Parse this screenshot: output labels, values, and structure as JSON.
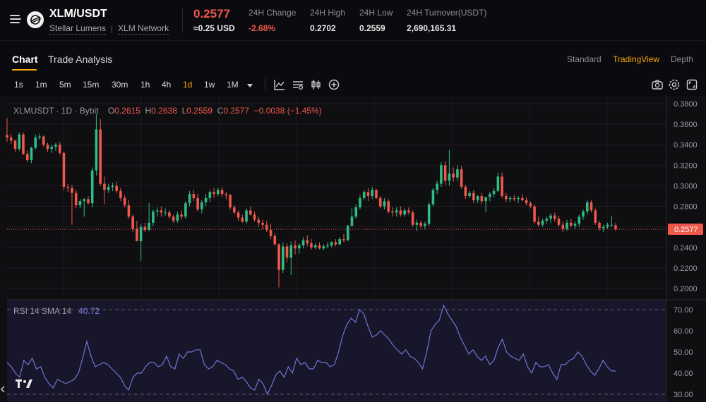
{
  "header": {
    "pair": "XLM/USDT",
    "asset_name": "Stellar Lumens",
    "network": "XLM Network",
    "last_price": "0.2577",
    "usd_price": "≈0.25 USD",
    "stats": [
      {
        "label": "24H Change",
        "value": "-2.68%",
        "tone": "red"
      },
      {
        "label": "24H High",
        "value": "0.2702",
        "tone": "neutral"
      },
      {
        "label": "24H Low",
        "value": "0.2559",
        "tone": "neutral"
      },
      {
        "label": "24H Turnover(USDT)",
        "value": "2,690,165.31",
        "tone": "neutral"
      }
    ]
  },
  "tabs": {
    "chart": "Chart",
    "trade_analysis": "Trade Analysis",
    "views": [
      "Standard",
      "TradingView",
      "Depth"
    ],
    "active_view": "TradingView"
  },
  "toolbar": {
    "timeframes": [
      "1s",
      "1m",
      "5m",
      "15m",
      "30m",
      "1h",
      "4h",
      "1d",
      "1w",
      "1M"
    ],
    "active_timeframe": "1d",
    "tools": [
      "indicator-icon",
      "settings-icon",
      "candle-type-icon",
      "add-icon"
    ],
    "right_tools": [
      "camera-icon",
      "gear-icon",
      "fullscreen-icon"
    ]
  },
  "legend": {
    "symbol": "XLMUSDT · 1D · Bybit",
    "o_label": "O",
    "o": "0.2615",
    "h_label": "H",
    "h": "0.2638",
    "l_label": "L",
    "l": "0.2559",
    "c_label": "C",
    "c": "0.2577",
    "change": "−0.0038 (−1.45%)"
  },
  "rsi_legend": {
    "label": "RSI 14 SMA 14",
    "value": "40.72"
  },
  "colors": {
    "up": "#2ebd85",
    "down": "#f0584b",
    "accent": "#f7a600",
    "rsi": "#7b6fd6"
  },
  "chart_data": [
    {
      "type": "candlestick",
      "title": "XLMUSDT · 1D · Bybit",
      "yticks": [
        "0.3800",
        "0.3600",
        "0.3400",
        "0.3200",
        "0.3000",
        "0.2800",
        "0.2600",
        "0.2400",
        "0.2200",
        "0.2000"
      ],
      "ylim": [
        0.1965,
        0.385
      ],
      "last_price_label": "0.2577",
      "grid": true,
      "candles": [
        [
          0.3495,
          0.366,
          0.343,
          0.347
        ],
        [
          0.347,
          0.35,
          0.341,
          0.344
        ],
        [
          0.344,
          0.345,
          0.333,
          0.336
        ],
        [
          0.336,
          0.352,
          0.334,
          0.35
        ],
        [
          0.35,
          0.352,
          0.33,
          0.331
        ],
        [
          0.331,
          0.334,
          0.323,
          0.325
        ],
        [
          0.325,
          0.338,
          0.322,
          0.337
        ],
        [
          0.337,
          0.35,
          0.335,
          0.347
        ],
        [
          0.347,
          0.351,
          0.345,
          0.348
        ],
        [
          0.348,
          0.349,
          0.338,
          0.34
        ],
        [
          0.34,
          0.342,
          0.333,
          0.336
        ],
        [
          0.336,
          0.34,
          0.332,
          0.338
        ],
        [
          0.338,
          0.342,
          0.334,
          0.34
        ],
        [
          0.34,
          0.343,
          0.33,
          0.332
        ],
        [
          0.332,
          0.333,
          0.296,
          0.299
        ],
        [
          0.299,
          0.302,
          0.294,
          0.298
        ],
        [
          0.298,
          0.301,
          0.262,
          0.293
        ],
        [
          0.293,
          0.296,
          0.278,
          0.281
        ],
        [
          0.281,
          0.287,
          0.278,
          0.285
        ],
        [
          0.285,
          0.288,
          0.27,
          0.287
        ],
        [
          0.287,
          0.29,
          0.282,
          0.283
        ],
        [
          0.283,
          0.318,
          0.279,
          0.315
        ],
        [
          0.315,
          0.37,
          0.31,
          0.355
        ],
        [
          0.355,
          0.365,
          0.3,
          0.302
        ],
        [
          0.302,
          0.309,
          0.282,
          0.296
        ],
        [
          0.296,
          0.302,
          0.293,
          0.299
        ],
        [
          0.299,
          0.303,
          0.295,
          0.3
        ],
        [
          0.3,
          0.304,
          0.293,
          0.295
        ],
        [
          0.295,
          0.298,
          0.285,
          0.288
        ],
        [
          0.288,
          0.291,
          0.279,
          0.281
        ],
        [
          0.281,
          0.286,
          0.268,
          0.27
        ],
        [
          0.27,
          0.272,
          0.255,
          0.258
        ],
        [
          0.258,
          0.266,
          0.246,
          0.246
        ],
        [
          0.246,
          0.263,
          0.227,
          0.26
        ],
        [
          0.26,
          0.264,
          0.255,
          0.257
        ],
        [
          0.257,
          0.283,
          0.256,
          0.264
        ],
        [
          0.264,
          0.277,
          0.261,
          0.275
        ],
        [
          0.275,
          0.279,
          0.27,
          0.276
        ],
        [
          0.276,
          0.28,
          0.27,
          0.274
        ],
        [
          0.274,
          0.278,
          0.271,
          0.274
        ],
        [
          0.274,
          0.276,
          0.268,
          0.27
        ],
        [
          0.27,
          0.272,
          0.264,
          0.266
        ],
        [
          0.266,
          0.275,
          0.264,
          0.272
        ],
        [
          0.272,
          0.276,
          0.267,
          0.27
        ],
        [
          0.27,
          0.285,
          0.268,
          0.283
        ],
        [
          0.283,
          0.295,
          0.28,
          0.292
        ],
        [
          0.292,
          0.296,
          0.285,
          0.288
        ],
        [
          0.288,
          0.292,
          0.275,
          0.277
        ],
        [
          0.277,
          0.286,
          0.273,
          0.284
        ],
        [
          0.284,
          0.292,
          0.28,
          0.288
        ],
        [
          0.288,
          0.296,
          0.284,
          0.294
        ],
        [
          0.294,
          0.298,
          0.288,
          0.292
        ],
        [
          0.292,
          0.298,
          0.29,
          0.296
        ],
        [
          0.296,
          0.299,
          0.289,
          0.292
        ],
        [
          0.292,
          0.294,
          0.287,
          0.291
        ],
        [
          0.291,
          0.292,
          0.277,
          0.279
        ],
        [
          0.279,
          0.281,
          0.272,
          0.274
        ],
        [
          0.274,
          0.276,
          0.266,
          0.269
        ],
        [
          0.269,
          0.272,
          0.264,
          0.265
        ],
        [
          0.265,
          0.278,
          0.263,
          0.276
        ],
        [
          0.276,
          0.28,
          0.271,
          0.272
        ],
        [
          0.272,
          0.275,
          0.265,
          0.267
        ],
        [
          0.267,
          0.27,
          0.26,
          0.264
        ],
        [
          0.264,
          0.267,
          0.258,
          0.262
        ],
        [
          0.262,
          0.266,
          0.255,
          0.257
        ],
        [
          0.257,
          0.263,
          0.248,
          0.251
        ],
        [
          0.251,
          0.254,
          0.242,
          0.243
        ],
        [
          0.243,
          0.244,
          0.201,
          0.218
        ],
        [
          0.218,
          0.245,
          0.215,
          0.241
        ],
        [
          0.241,
          0.244,
          0.225,
          0.23
        ],
        [
          0.23,
          0.246,
          0.213,
          0.242
        ],
        [
          0.242,
          0.247,
          0.233,
          0.239
        ],
        [
          0.239,
          0.244,
          0.234,
          0.242
        ],
        [
          0.242,
          0.25,
          0.239,
          0.247
        ],
        [
          0.247,
          0.252,
          0.241,
          0.244
        ],
        [
          0.244,
          0.248,
          0.238,
          0.24
        ],
        [
          0.24,
          0.244,
          0.238,
          0.242
        ],
        [
          0.242,
          0.245,
          0.238,
          0.239
        ],
        [
          0.239,
          0.243,
          0.237,
          0.241
        ],
        [
          0.241,
          0.245,
          0.239,
          0.242
        ],
        [
          0.242,
          0.246,
          0.24,
          0.245
        ],
        [
          0.245,
          0.248,
          0.241,
          0.243
        ],
        [
          0.243,
          0.25,
          0.242,
          0.248
        ],
        [
          0.248,
          0.253,
          0.245,
          0.247
        ],
        [
          0.247,
          0.262,
          0.246,
          0.261
        ],
        [
          0.261,
          0.278,
          0.26,
          0.27
        ],
        [
          0.27,
          0.282,
          0.268,
          0.279
        ],
        [
          0.279,
          0.291,
          0.277,
          0.288
        ],
        [
          0.288,
          0.296,
          0.286,
          0.294
        ],
        [
          0.294,
          0.298,
          0.285,
          0.29
        ],
        [
          0.29,
          0.299,
          0.287,
          0.296
        ],
        [
          0.296,
          0.297,
          0.287,
          0.288
        ],
        [
          0.288,
          0.29,
          0.278,
          0.28
        ],
        [
          0.28,
          0.288,
          0.277,
          0.285
        ],
        [
          0.285,
          0.287,
          0.273,
          0.275
        ],
        [
          0.275,
          0.279,
          0.27,
          0.274
        ],
        [
          0.274,
          0.279,
          0.27,
          0.276
        ],
        [
          0.276,
          0.28,
          0.27,
          0.272
        ],
        [
          0.272,
          0.278,
          0.27,
          0.276
        ],
        [
          0.276,
          0.279,
          0.272,
          0.274
        ],
        [
          0.274,
          0.276,
          0.26,
          0.262
        ],
        [
          0.262,
          0.267,
          0.256,
          0.264
        ],
        [
          0.264,
          0.266,
          0.259,
          0.261
        ],
        [
          0.261,
          0.265,
          0.258,
          0.263
        ],
        [
          0.263,
          0.284,
          0.261,
          0.282
        ],
        [
          0.282,
          0.298,
          0.28,
          0.296
        ],
        [
          0.296,
          0.305,
          0.292,
          0.302
        ],
        [
          0.302,
          0.323,
          0.299,
          0.32
        ],
        [
          0.32,
          0.324,
          0.301,
          0.305
        ],
        [
          0.305,
          0.335,
          0.3,
          0.312
        ],
        [
          0.312,
          0.318,
          0.304,
          0.308
        ],
        [
          0.308,
          0.32,
          0.305,
          0.316
        ],
        [
          0.316,
          0.319,
          0.297,
          0.299
        ],
        [
          0.299,
          0.301,
          0.287,
          0.29
        ],
        [
          0.29,
          0.295,
          0.288,
          0.293
        ],
        [
          0.293,
          0.296,
          0.283,
          0.286
        ],
        [
          0.286,
          0.291,
          0.283,
          0.29
        ],
        [
          0.29,
          0.293,
          0.282,
          0.285
        ],
        [
          0.285,
          0.289,
          0.274,
          0.289
        ],
        [
          0.289,
          0.294,
          0.285,
          0.292
        ],
        [
          0.292,
          0.298,
          0.289,
          0.295
        ],
        [
          0.295,
          0.313,
          0.294,
          0.309
        ],
        [
          0.309,
          0.313,
          0.288,
          0.29
        ],
        [
          0.29,
          0.293,
          0.284,
          0.287
        ],
        [
          0.287,
          0.29,
          0.284,
          0.288
        ],
        [
          0.288,
          0.291,
          0.285,
          0.287
        ],
        [
          0.287,
          0.29,
          0.283,
          0.288
        ],
        [
          0.288,
          0.292,
          0.285,
          0.286
        ],
        [
          0.286,
          0.289,
          0.281,
          0.283
        ],
        [
          0.283,
          0.285,
          0.278,
          0.28
        ],
        [
          0.28,
          0.282,
          0.263,
          0.265
        ],
        [
          0.265,
          0.27,
          0.26,
          0.262
        ],
        [
          0.262,
          0.268,
          0.26,
          0.266
        ],
        [
          0.266,
          0.27,
          0.263,
          0.268
        ],
        [
          0.268,
          0.273,
          0.264,
          0.271
        ],
        [
          0.271,
          0.274,
          0.265,
          0.268
        ],
        [
          0.268,
          0.271,
          0.26,
          0.262
        ],
        [
          0.262,
          0.265,
          0.255,
          0.258
        ],
        [
          0.258,
          0.267,
          0.256,
          0.264
        ],
        [
          0.264,
          0.268,
          0.26,
          0.261
        ],
        [
          0.261,
          0.265,
          0.258,
          0.263
        ],
        [
          0.263,
          0.272,
          0.26,
          0.27
        ],
        [
          0.27,
          0.277,
          0.267,
          0.275
        ],
        [
          0.275,
          0.286,
          0.272,
          0.284
        ],
        [
          0.284,
          0.286,
          0.274,
          0.276
        ],
        [
          0.276,
          0.278,
          0.262,
          0.264
        ],
        [
          0.264,
          0.266,
          0.256,
          0.259
        ],
        [
          0.259,
          0.262,
          0.255,
          0.26
        ],
        [
          0.26,
          0.264,
          0.258,
          0.262
        ],
        [
          0.262,
          0.271,
          0.26,
          0.262
        ],
        [
          0.2615,
          0.2638,
          0.2559,
          0.2577
        ]
      ]
    },
    {
      "type": "line",
      "title": "RSI 14 SMA 14",
      "yticks": [
        "70.00",
        "60.00",
        "50.00",
        "40.00",
        "30.00"
      ],
      "ylim": [
        25,
        75
      ],
      "levels": [
        70,
        30
      ],
      "series": [
        {
          "values": [
            45,
            43,
            40,
            38,
            46,
            44,
            47,
            42,
            43,
            38,
            35,
            33,
            37,
            36,
            35,
            36,
            37,
            40,
            47,
            55,
            48,
            43,
            44,
            45,
            44,
            42,
            40,
            38,
            34,
            32,
            38,
            40,
            40,
            43,
            45,
            45,
            43,
            44,
            48,
            43,
            42,
            49,
            47,
            50,
            50,
            51,
            51,
            44,
            42,
            43,
            46,
            45,
            44,
            42,
            41,
            37,
            38,
            36,
            33,
            32,
            37,
            35,
            30,
            34,
            39,
            41,
            38,
            43,
            40,
            47,
            44,
            45,
            42,
            42,
            46,
            45,
            45,
            43,
            44,
            50,
            58,
            63,
            66,
            64,
            70,
            68,
            62,
            57,
            58,
            60,
            58,
            56,
            53,
            51,
            49,
            51,
            48,
            47,
            45,
            42,
            50,
            60,
            63,
            65,
            72,
            68,
            65,
            62,
            57,
            53,
            49,
            51,
            48,
            46,
            48,
            44,
            46,
            52,
            56,
            50,
            48,
            47,
            46,
            49,
            43,
            40,
            45,
            43,
            43,
            44,
            40,
            37,
            44,
            44,
            46,
            47,
            50,
            48,
            44,
            41,
            39,
            42,
            46,
            43,
            41,
            41
          ]
        }
      ]
    }
  ]
}
